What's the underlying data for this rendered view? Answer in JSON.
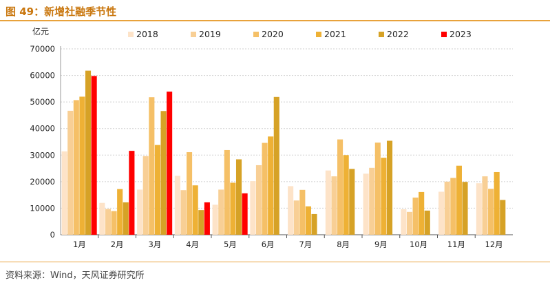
{
  "header": {
    "title": "图 49：新增社融季节性"
  },
  "footer": {
    "source": "资料来源：Wind，天风证券研究所"
  },
  "chart_data": {
    "type": "bar",
    "title": "图 49：新增社融季节性",
    "ylabel": "亿元",
    "xlabel": "",
    "ylim": [
      0,
      70000
    ],
    "yticks": [
      0,
      10000,
      20000,
      30000,
      40000,
      50000,
      60000,
      70000
    ],
    "grid": true,
    "legend_position": "top",
    "categories": [
      "1月",
      "2月",
      "3月",
      "4月",
      "5月",
      "6月",
      "7月",
      "8月",
      "9月",
      "10月",
      "11月",
      "12月"
    ],
    "series": [
      {
        "name": "2018",
        "color": "#fde3c8",
        "values": [
          31400,
          12000,
          17000,
          22200,
          11300,
          20200,
          18300,
          24200,
          23000,
          9600,
          16200,
          19400
        ]
      },
      {
        "name": "2019",
        "color": "#f8cf95",
        "values": [
          46700,
          9700,
          29600,
          16800,
          17000,
          26200,
          12900,
          22000,
          25200,
          8600,
          20000,
          22000
        ]
      },
      {
        "name": "2020",
        "color": "#f5c067",
        "values": [
          50700,
          8900,
          51800,
          31100,
          31900,
          34600,
          16900,
          35900,
          34700,
          14000,
          21400,
          17300
        ]
      },
      {
        "name": "2021",
        "color": "#eeb135",
        "values": [
          52000,
          17200,
          33800,
          18600,
          19600,
          37000,
          10700,
          30000,
          29000,
          16100,
          26000,
          23600
        ]
      },
      {
        "name": "2022",
        "color": "#d6a226",
        "values": [
          61800,
          12200,
          46600,
          9300,
          28400,
          51900,
          7800,
          24800,
          35400,
          9100,
          19900,
          13100
        ]
      },
      {
        "name": "2023",
        "color": "#ff0000",
        "values": [
          59800,
          31600,
          53900,
          12200,
          15600,
          null,
          null,
          null,
          null,
          null,
          null,
          null
        ]
      }
    ]
  }
}
